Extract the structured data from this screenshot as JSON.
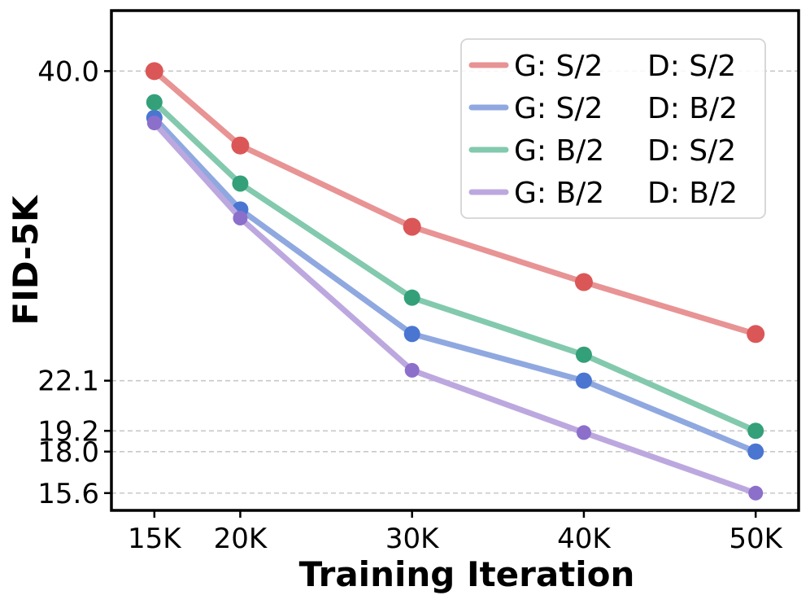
{
  "chart_data": {
    "type": "line",
    "title": "",
    "xlabel": "Training Iteration",
    "ylabel": "FID-5K",
    "x": [
      15,
      20,
      30,
      40,
      50
    ],
    "xtick_labels": [
      "15K",
      "20K",
      "30K",
      "40K",
      "50K"
    ],
    "xlim": [
      12.5,
      52.5
    ],
    "ylim": [
      14.6,
      43.5
    ],
    "yticks": [
      40.0,
      22.1,
      19.2,
      18.0,
      15.6
    ],
    "ytick_labels": [
      "40.0",
      "22.1",
      "19.2",
      "18.0",
      "15.6"
    ],
    "grid": "horizontal dashed at y ticks",
    "legend_position": "top-right",
    "series": [
      {
        "name": "G: S/2    D: S/2",
        "gen": "G: S/2",
        "disc": "D: S/2",
        "line_color": "#e89394",
        "marker_color": "#db5757",
        "values": [
          40.0,
          35.7,
          31.0,
          27.8,
          24.8
        ]
      },
      {
        "name": "G: S/2    D: B/2",
        "gen": "G: S/2",
        "disc": "D: B/2",
        "line_color": "#8fa8e0",
        "marker_color": "#4a76d1",
        "values": [
          37.3,
          32.0,
          24.8,
          22.1,
          18.0
        ]
      },
      {
        "name": "G: B/2    D: S/2",
        "gen": "G: B/2",
        "disc": "D: S/2",
        "line_color": "#83c9ae",
        "marker_color": "#33a079",
        "values": [
          38.2,
          33.5,
          26.9,
          23.6,
          19.2
        ]
      },
      {
        "name": "G: B/2    D: B/2",
        "gen": "G: B/2",
        "disc": "D: B/2",
        "line_color": "#bca8df",
        "marker_color": "#8c6fcb",
        "values": [
          37.0,
          31.5,
          22.7,
          19.1,
          15.6
        ]
      }
    ]
  }
}
